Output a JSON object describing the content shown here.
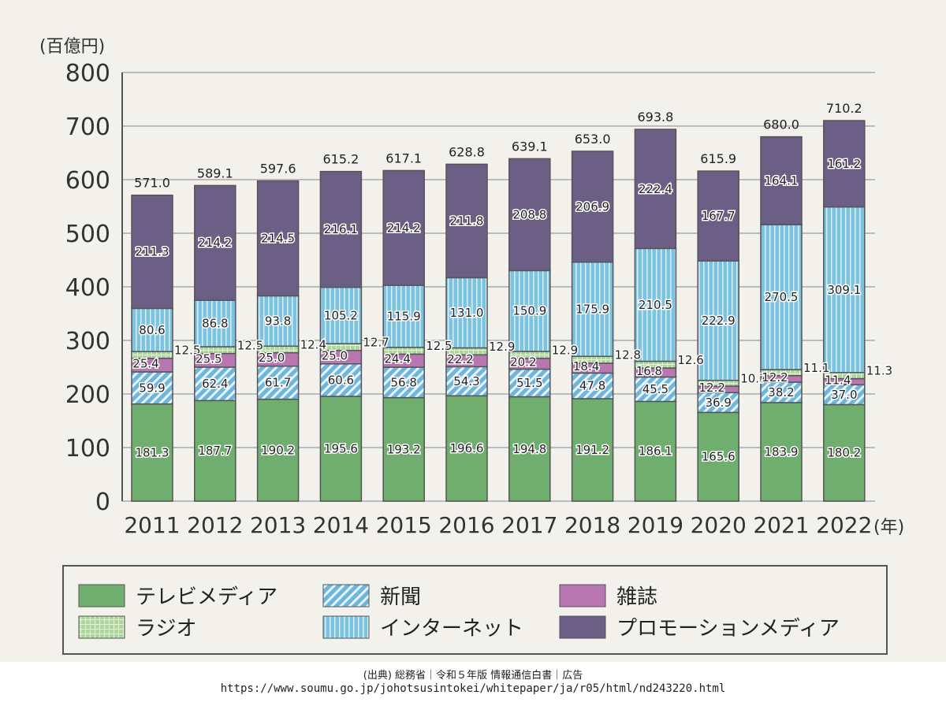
{
  "chart_data": {
    "type": "bar",
    "stacked": true,
    "ylabel": "(百億円)",
    "xlabel": "(年)",
    "ylim": [
      0,
      800
    ],
    "yticks": [
      0,
      100,
      200,
      300,
      400,
      500,
      600,
      700,
      800
    ],
    "grid": true,
    "legend_position": "bottom",
    "categories": [
      "2011",
      "2012",
      "2013",
      "2014",
      "2015",
      "2016",
      "2017",
      "2018",
      "2019",
      "2020",
      "2021",
      "2022"
    ],
    "series": [
      {
        "name": "テレビメディア",
        "color": "#6fae6f",
        "values": [
          181.3,
          187.7,
          190.2,
          195.6,
          193.2,
          196.6,
          194.8,
          191.2,
          186.1,
          165.6,
          183.9,
          180.2
        ]
      },
      {
        "name": "新聞",
        "color": "#6fb6dc",
        "pattern": "diagonal",
        "values": [
          59.9,
          62.4,
          61.7,
          60.6,
          56.8,
          54.3,
          51.5,
          47.8,
          45.5,
          36.9,
          38.2,
          37.0
        ]
      },
      {
        "name": "雑誌",
        "color": "#b877b0",
        "values": [
          25.4,
          25.5,
          25.0,
          25.0,
          24.4,
          22.2,
          20.2,
          18.4,
          16.8,
          12.2,
          12.2,
          11.4
        ]
      },
      {
        "name": "ラジオ",
        "color": "#a9d89a",
        "pattern": "grid",
        "values": [
          12.5,
          12.5,
          12.4,
          12.7,
          12.5,
          12.9,
          12.9,
          12.8,
          12.6,
          10.7,
          11.1,
          11.3
        ]
      },
      {
        "name": "インターネット",
        "color": "#7cc3e3",
        "pattern": "vertical",
        "values": [
          80.6,
          86.8,
          93.8,
          105.2,
          115.9,
          131.0,
          150.9,
          175.9,
          210.5,
          222.9,
          270.5,
          309.1
        ]
      },
      {
        "name": "プロモーションメディア",
        "color": "#6b5f85",
        "values": [
          211.3,
          214.2,
          214.5,
          216.1,
          214.2,
          211.8,
          208.8,
          206.9,
          222.4,
          167.7,
          164.1,
          161.2
        ]
      }
    ],
    "totals": [
      "571.0",
      "589.1",
      "597.6",
      "615.2",
      "617.1",
      "628.8",
      "639.1",
      "653.0",
      "693.8",
      "615.9",
      "680.0",
      "710.2"
    ]
  },
  "source": {
    "line1": "(出典) 総務省｜令和５年版 情報通信白書｜広告",
    "line2": "https://www.soumu.go.jp/johotsusintokei/whitepaper/ja/r05/html/nd243220.html"
  }
}
